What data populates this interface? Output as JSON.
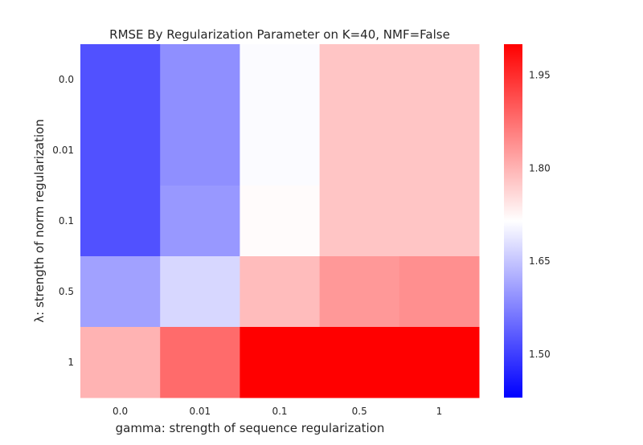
{
  "chart_data": {
    "type": "heatmap",
    "title": "RMSE By Regularization Parameter on K=40, NMF=False",
    "xlabel": "gamma: strength of sequence regularization",
    "ylabel": "λ: strength of norm regularization",
    "x_categories": [
      "0.0",
      "0.01",
      "0.1",
      "0.5",
      "1"
    ],
    "y_categories": [
      "0.0",
      "0.01",
      "0.1",
      "0.5",
      "1"
    ],
    "values": [
      [
        1.52,
        1.59,
        1.71,
        1.78,
        1.78
      ],
      [
        1.52,
        1.59,
        1.71,
        1.78,
        1.78
      ],
      [
        1.52,
        1.6,
        1.72,
        1.78,
        1.78
      ],
      [
        1.61,
        1.67,
        1.79,
        1.83,
        1.84
      ],
      [
        1.8,
        1.88,
        2.0,
        2.0,
        2.0
      ]
    ],
    "colorbar": {
      "colormap": "bwr",
      "vmin": 1.43,
      "vmax": 2.0,
      "ticks": [
        1.5,
        1.65,
        1.8,
        1.95
      ],
      "tick_labels": [
        "1.50",
        "1.65",
        "1.80",
        "1.95"
      ]
    },
    "colors": {
      "low": "#0000ff",
      "mid": "#ffffff",
      "high": "#ff0000"
    }
  }
}
